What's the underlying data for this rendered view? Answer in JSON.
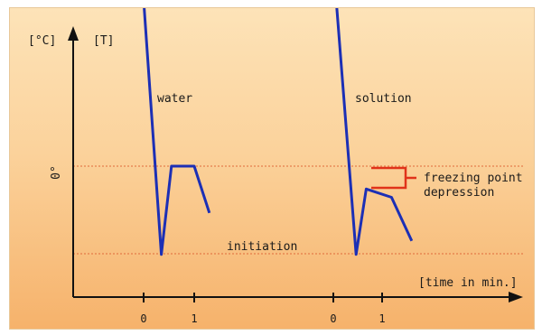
{
  "chart_data": {
    "type": "line",
    "title": "",
    "y_unit_celsius": "[°C]",
    "y_unit_kelvin": "[T]",
    "xlabel": "[time in min.]",
    "zero_label": "0°",
    "colors": {
      "curve": "#1c2fb5",
      "bracket": "#e0331a",
      "guide": "#e06a3a",
      "axis": "#111111"
    },
    "series": [
      {
        "name": "water",
        "x_ticks": [
          "0",
          "1"
        ],
        "points": [
          [
            -0.05,
            1.95
          ],
          [
            0.35,
            -0.85
          ],
          [
            0.55,
            0.0
          ],
          [
            1.0,
            0.0
          ],
          [
            1.3,
            -0.45
          ]
        ]
      },
      {
        "name": "solution",
        "x_ticks": [
          "0",
          "1"
        ],
        "points": [
          [
            0.0,
            1.95
          ],
          [
            0.45,
            -0.85
          ],
          [
            0.65,
            -0.22
          ],
          [
            1.15,
            -0.3
          ],
          [
            1.55,
            -0.72
          ]
        ]
      }
    ],
    "annotations": {
      "initiation": "initiation",
      "freezing_line1": "freezing point",
      "freezing_line2": "depression"
    }
  }
}
